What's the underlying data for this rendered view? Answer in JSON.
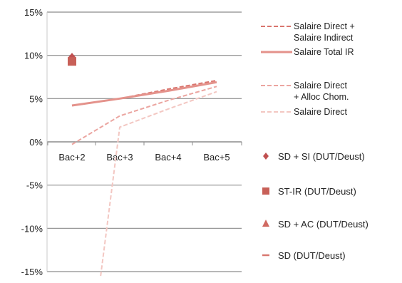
{
  "chart_data": {
    "type": "line",
    "categories": [
      "Bac+2",
      "Bac+3",
      "Bac+4",
      "Bac+5"
    ],
    "ylim": [
      -15,
      15
    ],
    "y_ticks": [
      15,
      10,
      5,
      0,
      -5,
      -10,
      -15
    ],
    "y_tick_labels": [
      "15%",
      "10%",
      "5%",
      "0%",
      "-5%",
      "-10%",
      "-15%"
    ],
    "grid": "horizontal",
    "legend_position": "right",
    "series": [
      {
        "name": "Salaire Direct + Salaire Indirect",
        "legend_lines": [
          "Salaire Direct +",
          "Salaire Indirect"
        ],
        "style": "dashed",
        "color": "#d9756e",
        "values": [
          4.2,
          5.0,
          6.1,
          7.1
        ]
      },
      {
        "name": "Salaire Total IR",
        "legend_lines": [
          "Salaire Total IR"
        ],
        "style": "solid",
        "color": "#e4928b",
        "values": [
          4.2,
          5.0,
          5.9,
          6.9
        ]
      },
      {
        "name": "Salaire Direct + Alloc Chom.",
        "legend_lines": [
          "Salaire Direct",
          "+ Alloc Chom."
        ],
        "style": "dashed",
        "color": "#eba5a0",
        "values": [
          -0.3,
          3.0,
          4.8,
          6.4
        ]
      },
      {
        "name": "Salaire Direct",
        "legend_lines": [
          "Salaire Direct"
        ],
        "style": "dashed",
        "color": "#f3c7c2",
        "x_positions": [
          2.6,
          3.0,
          4.0,
          5.0
        ],
        "values": [
          -15.5,
          1.7,
          3.8,
          5.8
        ]
      }
    ],
    "markers": [
      {
        "name": "SD + SI (DUT/Deust)",
        "shape": "diamond",
        "color": "#c05050",
        "category": "Bac+2",
        "value": 9.8
      },
      {
        "name": "ST-IR (DUT/Deust)",
        "shape": "square",
        "color": "#c86058",
        "category": "Bac+2",
        "value": 9.3
      },
      {
        "name": "SD + AC (DUT/Deust)",
        "shape": "triangle",
        "color": "#d06a62",
        "category": "Bac+2",
        "value": null
      },
      {
        "name": "SD (DUT/Deust)",
        "shape": "dash",
        "color": "#d87870",
        "category": "Bac+2",
        "value": null
      }
    ]
  }
}
